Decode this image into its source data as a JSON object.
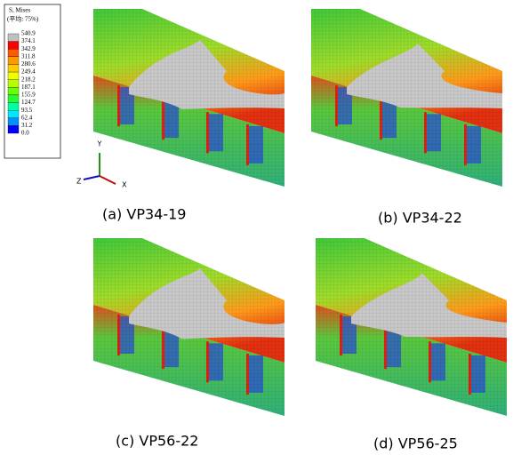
{
  "legend": {
    "title": "S, Mises",
    "subtitle": "(平均: 75%)",
    "levels": [
      "540.9",
      "374.1",
      "342.9",
      "311.8",
      "280.6",
      "249.4",
      "218.2",
      "187.1",
      "155.9",
      "124.7",
      "93.5",
      "62.4",
      "31.2",
      "0.0"
    ],
    "colors": [
      "#c0c0c0",
      "#ff0000",
      "#ff5a00",
      "#ff9900",
      "#ffcc00",
      "#f2ff00",
      "#b5ff00",
      "#6bff00",
      "#21ff33",
      "#00ff9e",
      "#00e8ff",
      "#0090ff",
      "#0000ff"
    ]
  },
  "axes": {
    "y": "Y",
    "z": "Z",
    "x": "X"
  },
  "panels": [
    {
      "caption": "(a) VP34-19"
    },
    {
      "caption": "(b) VP34-22"
    },
    {
      "caption": "(c) VP56-22"
    },
    {
      "caption": "(d) VP56-25"
    }
  ]
}
